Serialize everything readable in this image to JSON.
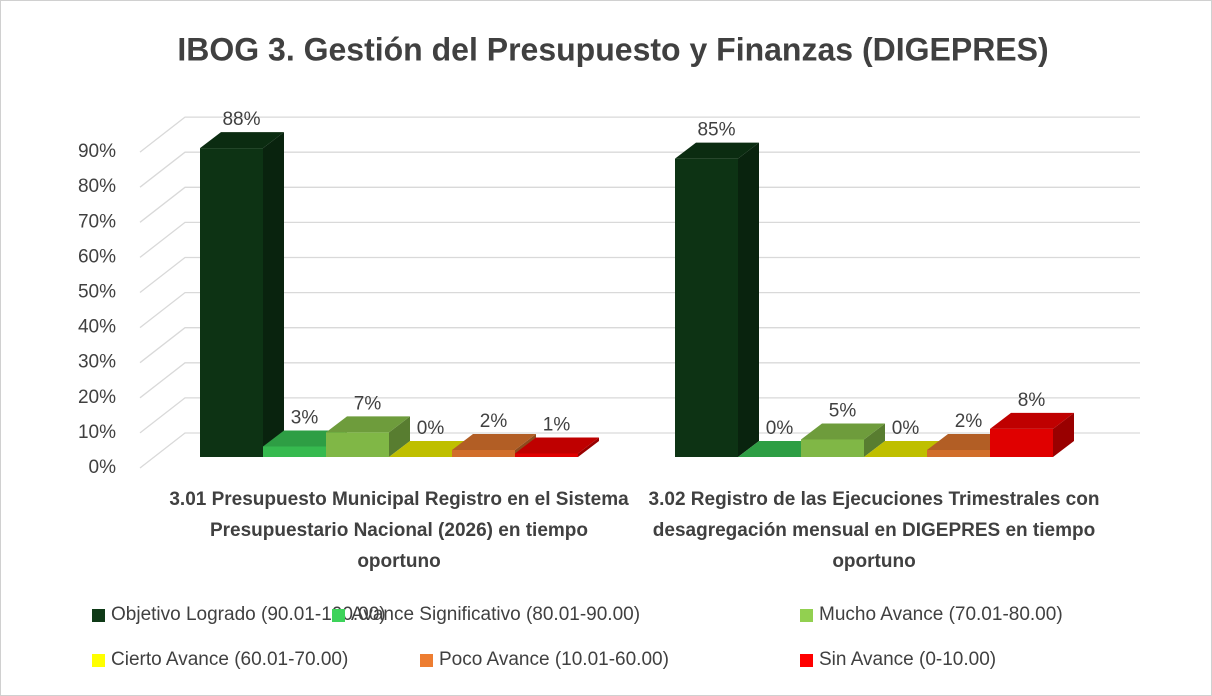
{
  "chart_data": {
    "type": "bar3d",
    "title": "IBOG 3. Gestión del Presupuesto y Finanzas (DIGEPRES)",
    "categories": [
      "3.01 Presupuesto Municipal Registro en el Sistema Presupuestario Nacional (2026) en tiempo oportuno",
      "3.02 Registro de las Ejecuciones Trimestrales con desagregación mensual en DIGEPRES en tiempo oportuno"
    ],
    "series": [
      {
        "name": "Objetivo Logrado (90.01-100.00)",
        "color": "#0f3a17",
        "values": [
          88,
          85
        ],
        "value_labels": [
          "88%",
          "85%"
        ]
      },
      {
        "name": "Avance Significativo (80.01-90.00)",
        "color": "#3dd35a",
        "values": [
          3,
          0
        ],
        "value_labels": [
          "3%",
          "0%"
        ]
      },
      {
        "name": "Mucho Avance (70.01-80.00)",
        "color": "#92d050",
        "values": [
          7,
          5
        ],
        "value_labels": [
          "7%",
          "5%"
        ]
      },
      {
        "name": "Cierto Avance (60.01-70.00)",
        "color": "#ffff00",
        "values": [
          0,
          0
        ],
        "value_labels": [
          "0%",
          "0%"
        ]
      },
      {
        "name": "Poco Avance (10.01-60.00)",
        "color": "#ed7d31",
        "values": [
          2,
          2
        ],
        "value_labels": [
          "2%",
          "2%"
        ]
      },
      {
        "name": "Sin Avance (0-10.00)",
        "color": "#ff0000",
        "values": [
          1,
          8
        ],
        "value_labels": [
          "1%",
          "8%"
        ]
      }
    ],
    "ylim": [
      0,
      90
    ],
    "yticks": [
      {
        "value": 0,
        "label": "0%"
      },
      {
        "value": 10,
        "label": "10%"
      },
      {
        "value": 20,
        "label": "20%"
      },
      {
        "value": 30,
        "label": "30%"
      },
      {
        "value": 40,
        "label": "40%"
      },
      {
        "value": 50,
        "label": "50%"
      },
      {
        "value": 60,
        "label": "60%"
      },
      {
        "value": 70,
        "label": "70%"
      },
      {
        "value": 80,
        "label": "80%"
      },
      {
        "value": 90,
        "label": "90%"
      }
    ],
    "grid": true,
    "legend": "bottom"
  }
}
